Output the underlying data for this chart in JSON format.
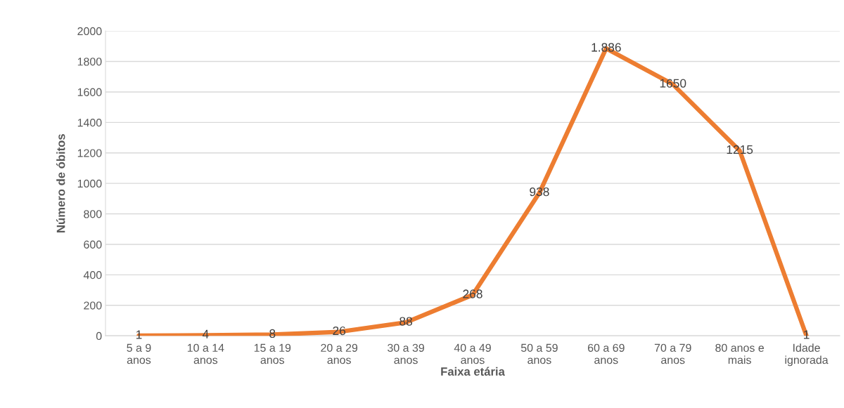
{
  "chart_data": {
    "type": "line",
    "xlabel": "Faixa etária",
    "ylabel": "Número de óbitos",
    "categories": [
      "5 a 9\nanos",
      "10 a 14\nanos",
      "15 a 19\nanos",
      "20 a 29\nanos",
      "30 a 39\nanos",
      "40 a 49\nanos",
      "50 a 59\nanos",
      "60 a 69\nanos",
      "70 a 79\nanos",
      "80 anos e\nmais",
      "Idade\nignorada"
    ],
    "series": [
      {
        "color": "#ed7d31",
        "values": [
          1,
          4,
          8,
          26,
          88,
          268,
          938,
          1886,
          1650,
          1215,
          1
        ],
        "value_labels": [
          "1",
          "4",
          "8",
          "26",
          "88",
          "268",
          "938",
          "1.886",
          "1650",
          "1215",
          "1"
        ]
      }
    ],
    "ylim": [
      0,
      2000
    ],
    "yticks": [
      0,
      200,
      400,
      600,
      800,
      1000,
      1200,
      1400,
      1600,
      1800,
      2000
    ],
    "grid": "y",
    "legend": false,
    "marker": "none",
    "line_style": "solid"
  }
}
